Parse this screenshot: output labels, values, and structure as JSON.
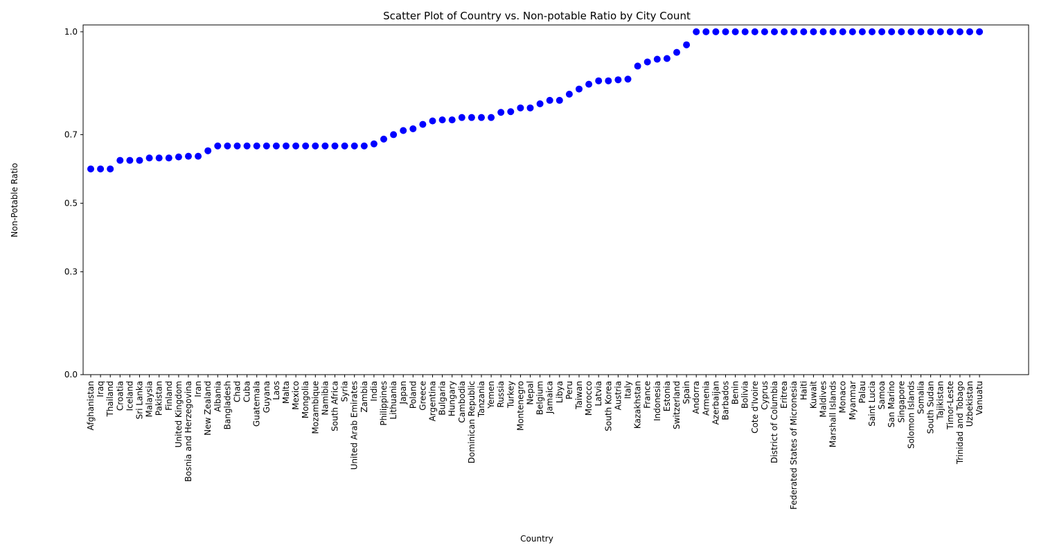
{
  "chart_data": {
    "type": "scatter",
    "title": "Scatter Plot of Country vs. Non-potable Ratio by City Count",
    "xlabel": "Country",
    "ylabel": "Non-Potable Ratio",
    "ylim": [
      0,
      1.02
    ],
    "yticks": [
      0.0,
      0.3,
      0.5,
      0.7,
      1.0
    ],
    "yticklabels": [
      "0.0",
      "0.3",
      "0.5",
      "0.7",
      "1.0"
    ],
    "grid": false,
    "point_color": "#0000ff",
    "series": [
      {
        "x": [
          "Afghanistan",
          "Iraq",
          "Thailand",
          "Croatia",
          "Iceland",
          "Sri Lanka",
          "Malaysia",
          "Pakistan",
          "Finland",
          "United Kingdom",
          "Bosnia and Herzegovina",
          "Iran",
          "New Zealand",
          "Albania",
          "Bangladesh",
          "Chad",
          "Cuba",
          "Guatemala",
          "Guyana",
          "Laos",
          "Malta",
          "Mexico",
          "Mongolia",
          "Mozambique",
          "Namibia",
          "South Africa",
          "Syria",
          "United Arab Emirates",
          "Zambia",
          "India",
          "Philippines",
          "Lithuania",
          "Japan",
          "Poland",
          "Greece",
          "Argentina",
          "Bulgaria",
          "Hungary",
          "Cambodia",
          "Dominican Republic",
          "Tanzania",
          "Yemen",
          "Russia",
          "Turkey",
          "Montenegro",
          "Nepal",
          "Belgium",
          "Jamaica",
          "Libya",
          "Peru",
          "Taiwan",
          "Morocco",
          "Latvia",
          "South Korea",
          "Austria",
          "Italy",
          "Kazakhstan",
          "France",
          "Indonesia",
          "Estonia",
          "Switzerland",
          "Spain",
          "Andorra",
          "Armenia",
          "Azerbaijan",
          "Barbados",
          "Benin",
          "Bolivia",
          "Cote d'Ivoire",
          "Cyprus",
          "District of Columbia",
          "Eritrea",
          "Federated States of Micronesia",
          "Haiti",
          "Kuwait",
          "Maldives",
          "Marshall Islands",
          "Monaco",
          "Myanmar",
          "Palau",
          "Saint Lucia",
          "Samoa",
          "San Marino",
          "Singapore",
          "Solomon Islands",
          "Somalia",
          "South Sudan",
          "Tajikistan",
          "Timor-Leste",
          "Trinidad and Tobago",
          "Uzbekistan",
          "Vanuatu"
        ],
        "y": [
          0.6,
          0.6,
          0.6,
          0.625,
          0.625,
          0.625,
          0.632,
          0.632,
          0.632,
          0.635,
          0.637,
          0.637,
          0.653,
          0.667,
          0.667,
          0.667,
          0.667,
          0.667,
          0.667,
          0.667,
          0.667,
          0.667,
          0.667,
          0.667,
          0.667,
          0.667,
          0.667,
          0.667,
          0.667,
          0.673,
          0.687,
          0.7,
          0.712,
          0.717,
          0.73,
          0.74,
          0.743,
          0.743,
          0.75,
          0.75,
          0.75,
          0.75,
          0.765,
          0.767,
          0.778,
          0.778,
          0.79,
          0.8,
          0.8,
          0.818,
          0.833,
          0.847,
          0.857,
          0.857,
          0.86,
          0.862,
          0.9,
          0.912,
          0.92,
          0.922,
          0.94,
          0.962,
          1.0,
          1.0,
          1.0,
          1.0,
          1.0,
          1.0,
          1.0,
          1.0,
          1.0,
          1.0,
          1.0,
          1.0,
          1.0,
          1.0,
          1.0,
          1.0,
          1.0,
          1.0,
          1.0,
          1.0,
          1.0,
          1.0,
          1.0,
          1.0,
          1.0,
          1.0,
          1.0,
          1.0,
          1.0,
          1.0
        ]
      }
    ]
  }
}
